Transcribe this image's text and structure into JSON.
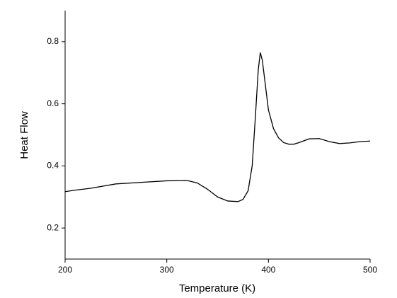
{
  "chart_data": {
    "type": "line",
    "x_label": "Temperature (K)",
    "y_label": "Heat Flow",
    "x": [
      200,
      210,
      225,
      250,
      275,
      300,
      320,
      330,
      340,
      350,
      360,
      370,
      375,
      380,
      384,
      387,
      390,
      392,
      394,
      397,
      400,
      405,
      410,
      415,
      420,
      425,
      430,
      440,
      450,
      460,
      470,
      480,
      490,
      500
    ],
    "series": [
      {
        "name": "Heat Flow",
        "color": "#000000",
        "values": [
          0.317,
          0.322,
          0.328,
          0.342,
          0.347,
          0.352,
          0.353,
          0.345,
          0.325,
          0.3,
          0.287,
          0.285,
          0.292,
          0.32,
          0.4,
          0.55,
          0.71,
          0.765,
          0.74,
          0.66,
          0.58,
          0.52,
          0.49,
          0.475,
          0.47,
          0.47,
          0.475,
          0.487,
          0.488,
          0.478,
          0.472,
          0.474,
          0.478,
          0.48
        ]
      }
    ],
    "xlim": [
      200,
      500
    ],
    "xticks": [
      200,
      300,
      400,
      500
    ],
    "ylim": [
      0.1,
      0.9
    ],
    "yticks": [
      0.2,
      0.4,
      0.6,
      0.8
    ],
    "grid": false
  }
}
